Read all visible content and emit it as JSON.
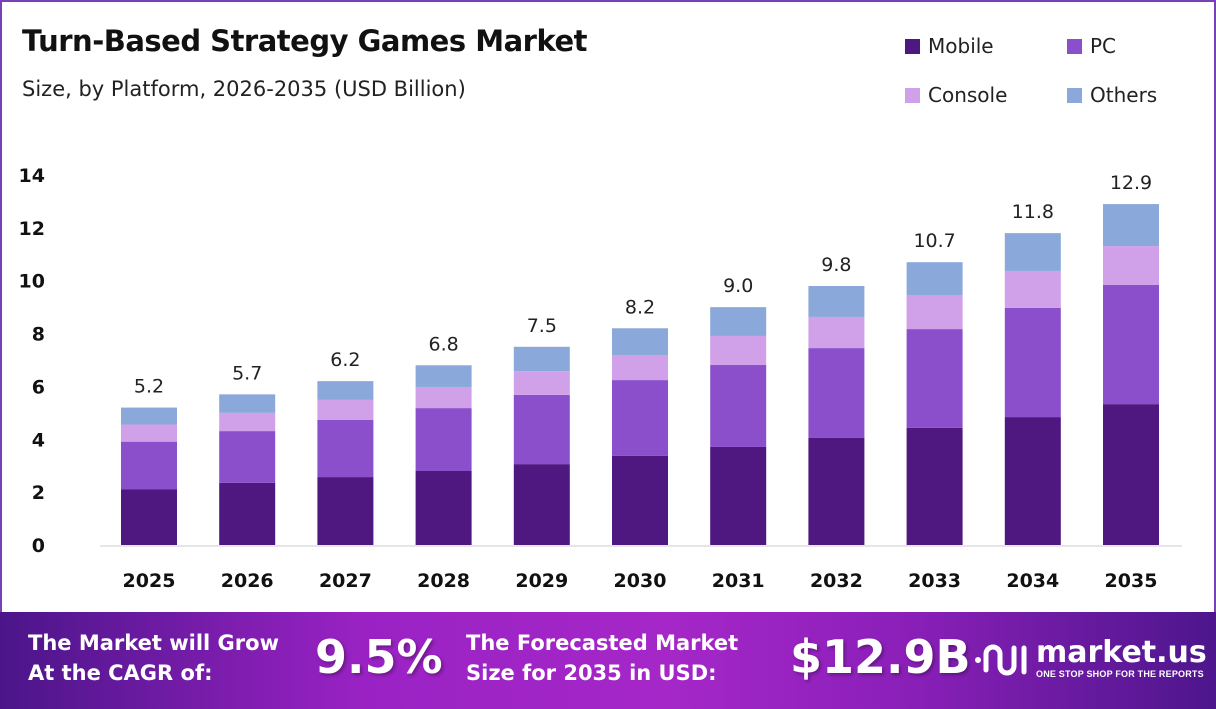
{
  "chart_data": {
    "type": "bar",
    "stacked": true,
    "title": "Turn-Based Strategy Games Market",
    "subtitle": "Size, by Platform, 2026-2035 (USD Billion)",
    "categories": [
      "2025",
      "2026",
      "2027",
      "2028",
      "2029",
      "2030",
      "2031",
      "2032",
      "2033",
      "2034",
      "2035"
    ],
    "series": [
      {
        "name": "Mobile",
        "color": "#4f1780",
        "values": [
          2.1,
          2.35,
          2.57,
          2.8,
          3.06,
          3.37,
          3.71,
          4.05,
          4.43,
          4.84,
          5.33
        ]
      },
      {
        "name": "PC",
        "color": "#8b4fcb",
        "values": [
          1.81,
          1.96,
          2.16,
          2.38,
          2.62,
          2.87,
          3.1,
          3.4,
          3.74,
          4.13,
          4.51
        ]
      },
      {
        "name": "Console",
        "color": "#d0a0e8",
        "values": [
          0.65,
          0.69,
          0.76,
          0.8,
          0.9,
          0.95,
          1.1,
          1.18,
          1.29,
          1.4,
          1.47
        ]
      },
      {
        "name": "Others",
        "color": "#8aa8da",
        "values": [
          0.64,
          0.7,
          0.71,
          0.82,
          0.92,
          1.01,
          1.09,
          1.17,
          1.24,
          1.43,
          1.59
        ]
      }
    ],
    "totals": [
      "5.2",
      "5.7",
      "6.2",
      "6.8",
      "7.5",
      "8.2",
      "9.0",
      "9.8",
      "10.7",
      "11.8",
      "12.9"
    ],
    "yticks": [
      "0",
      "2",
      "4",
      "6",
      "8",
      "10",
      "12",
      "14"
    ],
    "ylim": [
      0,
      14
    ],
    "grid": false,
    "legend_position": "top-right"
  },
  "banner": {
    "cagr_label_1": "The Market will Grow",
    "cagr_label_2": "At the CAGR of:",
    "cagr_value": "9.5%",
    "forecast_label_1": "The Forecasted Market",
    "forecast_label_2": "Size for 2035 in USD:",
    "forecast_value": "$12.9B",
    "logo_name": "market.us",
    "logo_tagline": "ONE STOP SHOP FOR THE REPORTS"
  }
}
